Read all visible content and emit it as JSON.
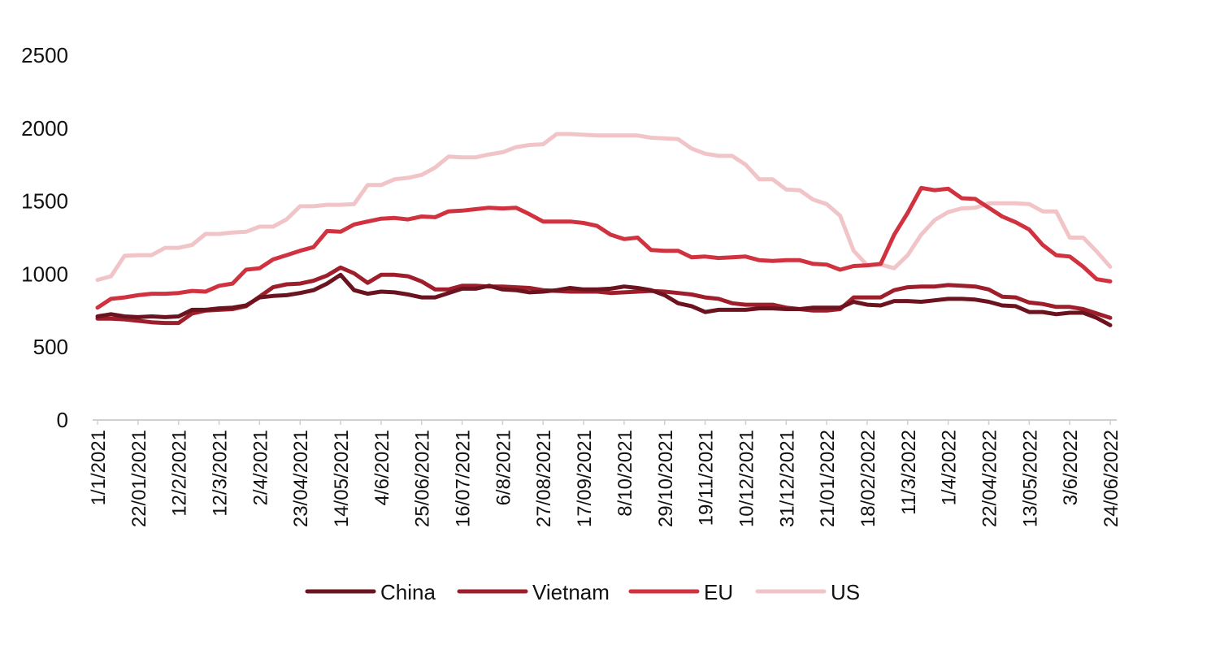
{
  "chart_data": {
    "type": "line",
    "title": "",
    "xlabel": "",
    "ylabel": "",
    "ylim": [
      0,
      2500
    ],
    "yticks": [
      0,
      500,
      1000,
      1500,
      2000,
      2500
    ],
    "grid": false,
    "legend_position": "bottom",
    "x_tick_labels": [
      "1/1/2021",
      "22/01/2021",
      "12/2/2021",
      "12/3/2021",
      "2/4/2021",
      "23/04/2021",
      "14/05/2021",
      "4/6/2021",
      "25/06/2021",
      "16/07/2021",
      "6/8/2021",
      "27/08/2021",
      "17/09/2021",
      "8/10/2021",
      "29/10/2021",
      "19/11/2021",
      "10/12/2021",
      "31/12/2021",
      "21/01/2022",
      "18/02/2022",
      "11/3/2022",
      "1/4/2022",
      "22/04/2022",
      "13/05/2022",
      "3/6/2022",
      "24/06/2022"
    ],
    "series": [
      {
        "name": "China",
        "color": "#6b1420",
        "values": [
          710,
          725,
          710,
          705,
          710,
          705,
          710,
          755,
          755,
          765,
          770,
          785,
          840,
          850,
          855,
          870,
          890,
          935,
          995,
          890,
          865,
          880,
          875,
          860,
          840,
          840,
          870,
          900,
          900,
          920,
          895,
          890,
          875,
          880,
          890,
          905,
          895,
          895,
          900,
          915,
          905,
          890,
          855,
          800,
          780,
          740,
          755,
          755,
          755,
          765,
          765,
          760,
          760,
          770,
          770,
          770,
          810,
          790,
          785,
          815,
          815,
          810,
          820,
          830,
          830,
          825,
          810,
          785,
          780,
          740,
          740,
          725,
          735,
          735,
          700,
          650
        ]
      },
      {
        "name": "Vietnam",
        "color": "#9e1f2b",
        "values": [
          695,
          695,
          690,
          680,
          670,
          665,
          665,
          730,
          750,
          755,
          760,
          780,
          845,
          910,
          930,
          935,
          955,
          990,
          1045,
          1005,
          940,
          995,
          995,
          985,
          950,
          895,
          895,
          920,
          920,
          915,
          915,
          910,
          905,
          890,
          885,
          880,
          880,
          880,
          870,
          875,
          880,
          885,
          880,
          870,
          860,
          840,
          830,
          800,
          790,
          790,
          790,
          770,
          760,
          750,
          750,
          760,
          840,
          840,
          840,
          890,
          910,
          915,
          915,
          925,
          920,
          915,
          895,
          845,
          840,
          805,
          795,
          775,
          775,
          760,
          730,
          700
        ]
      },
      {
        "name": "EU",
        "color": "#d1323f",
        "values": [
          770,
          830,
          840,
          855,
          865,
          865,
          870,
          885,
          880,
          920,
          935,
          1030,
          1040,
          1100,
          1130,
          1160,
          1185,
          1295,
          1290,
          1340,
          1360,
          1380,
          1385,
          1375,
          1395,
          1390,
          1430,
          1435,
          1445,
          1455,
          1450,
          1455,
          1410,
          1360,
          1360,
          1360,
          1350,
          1330,
          1270,
          1240,
          1250,
          1165,
          1160,
          1160,
          1115,
          1120,
          1110,
          1115,
          1120,
          1095,
          1090,
          1095,
          1095,
          1070,
          1065,
          1030,
          1055,
          1060,
          1070,
          1270,
          1420,
          1590,
          1575,
          1585,
          1520,
          1515,
          1455,
          1395,
          1355,
          1305,
          1200,
          1130,
          1120,
          1050,
          965,
          950
        ]
      },
      {
        "name": "US",
        "color": "#f1c4c8",
        "values": [
          960,
          985,
          1125,
          1130,
          1130,
          1180,
          1180,
          1200,
          1275,
          1275,
          1285,
          1290,
          1325,
          1325,
          1375,
          1465,
          1465,
          1475,
          1475,
          1480,
          1610,
          1610,
          1650,
          1660,
          1680,
          1730,
          1805,
          1800,
          1800,
          1820,
          1835,
          1870,
          1885,
          1890,
          1960,
          1960,
          1955,
          1950,
          1950,
          1950,
          1950,
          1935,
          1930,
          1925,
          1860,
          1825,
          1810,
          1810,
          1750,
          1650,
          1650,
          1580,
          1575,
          1510,
          1480,
          1400,
          1160,
          1060,
          1065,
          1040,
          1130,
          1270,
          1370,
          1425,
          1450,
          1455,
          1485,
          1485,
          1485,
          1480,
          1430,
          1430,
          1250,
          1250,
          1155,
          1050
        ]
      }
    ]
  }
}
